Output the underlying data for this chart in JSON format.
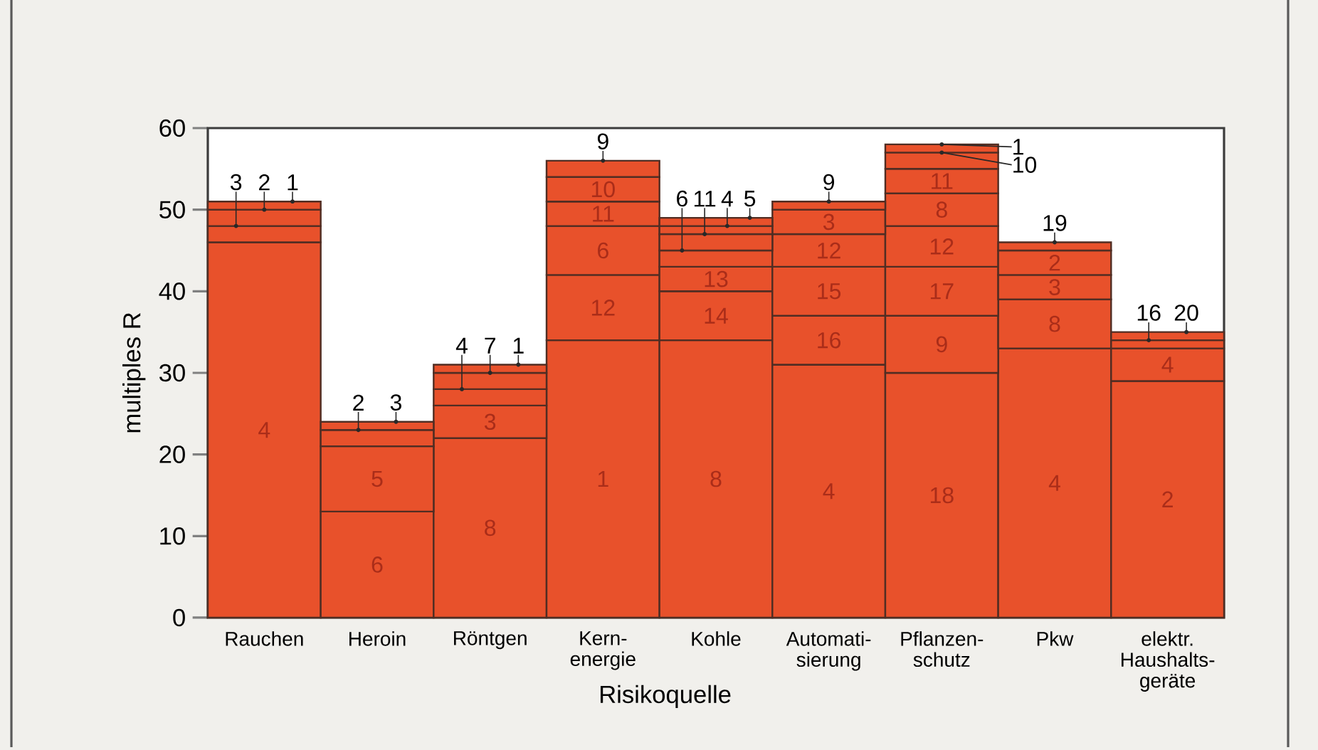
{
  "chart_data": {
    "type": "bar",
    "stacked": true,
    "xlabel": "Risikoquelle",
    "ylabel": "multiples R",
    "categories": [
      "Rauchen",
      "Heroin",
      "Röntgen",
      "Kern- energie",
      "Kohle",
      "Automati- sierung",
      "Pflanzen- schutz",
      "Pkw",
      "elektr. Haushalts- geräte"
    ],
    "ylim": [
      0,
      60
    ],
    "yticks": [
      0,
      10,
      20,
      30,
      40,
      50,
      60
    ],
    "grid": false,
    "series": [
      {
        "color": "#e8512b",
        "values": [
          46,
          13,
          22,
          34,
          34,
          31,
          30,
          33,
          29
        ]
      },
      {
        "color": "#e8512b",
        "values": [
          2,
          8,
          4,
          8,
          6,
          6,
          7,
          6,
          4
        ]
      },
      {
        "color": "#e8512b",
        "values": [
          2,
          2,
          2,
          6,
          3,
          6,
          6,
          3,
          1
        ]
      },
      {
        "color": "#e8512b",
        "values": [
          1,
          1,
          2,
          3,
          2,
          4,
          5,
          3,
          1
        ]
      },
      {
        "color": "#e8512b",
        "values": [
          null,
          null,
          1,
          3,
          2,
          3,
          4,
          1,
          null
        ]
      },
      {
        "color": "#e8512b",
        "values": [
          null,
          null,
          null,
          2,
          1,
          1,
          3,
          null,
          null
        ]
      },
      {
        "color": "#e8512b",
        "values": [
          null,
          null,
          null,
          null,
          1,
          null,
          2,
          null,
          null
        ]
      },
      {
        "color": "#e8512b",
        "values": [
          null,
          null,
          null,
          null,
          null,
          null,
          1,
          null,
          null
        ]
      }
    ],
    "annotations": [
      "4",
      {
        "text": "3",
        "x": "Rauchen",
        "y": 48
      },
      {
        "text": "2",
        "x": "Rauchen",
        "y": 50
      },
      {
        "text": "1",
        "x": "Rauchen",
        "y": 51
      },
      "6",
      "5",
      {
        "text": "2",
        "x": "Heroin",
        "y": 23
      },
      {
        "text": "3",
        "x": "Heroin",
        "y": 24
      },
      "8",
      "3",
      {
        "text": "4",
        "x": "Röntgen",
        "y": 28
      },
      {
        "text": "7",
        "x": "Röntgen",
        "y": 30
      },
      {
        "text": "1",
        "x": "Röntgen",
        "y": 31
      },
      "1",
      "12",
      "6",
      "11",
      "10",
      {
        "text": "9",
        "x": "Kern- energie",
        "y": 56
      },
      "8",
      "14",
      "13",
      {
        "text": "6",
        "x": "Kohle",
        "y": 45
      },
      {
        "text": "11",
        "x": "Kohle",
        "y": 47
      },
      {
        "text": "4",
        "x": "Kohle",
        "y": 48
      },
      {
        "text": "5",
        "x": "Kohle",
        "y": 49
      },
      "4",
      "16",
      "15",
      "12",
      "3",
      {
        "text": "9",
        "x": "Automati- sierung",
        "y": 51
      },
      "18",
      "9",
      "17",
      "12",
      "8",
      "11",
      {
        "text": "10",
        "x": "Pflanzen- schutz",
        "y": 57
      },
      {
        "text": "1",
        "x": "Pflanzen- schutz",
        "y": 58
      },
      "4",
      "8",
      "3",
      "2",
      {
        "text": "19",
        "x": "Pkw",
        "y": 46
      },
      "2",
      "4",
      {
        "text": "16",
        "x": "elektr. Haushalts- geräte",
        "y": 34
      },
      {
        "text": "20",
        "x": "elektr. Haushalts- geräte",
        "y": 35
      }
    ]
  }
}
